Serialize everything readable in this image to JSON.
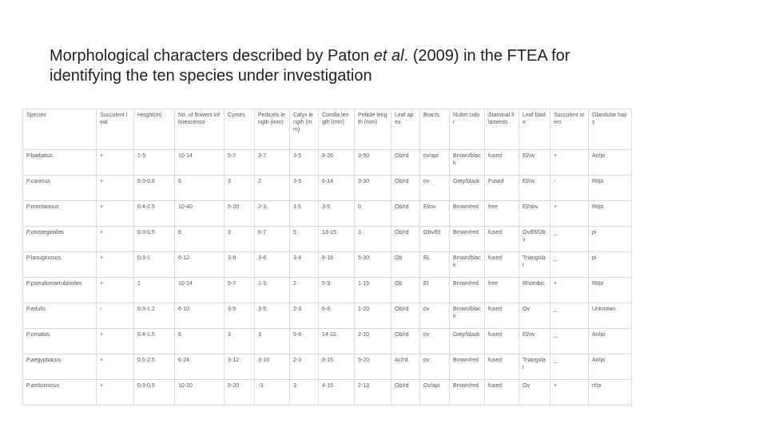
{
  "header": {
    "title_before": "Morphological characters described by Paton ",
    "title_italic": "et al",
    "title_after": ". (2009) in the FTEA for identifying the ten species under investigation"
  },
  "table": {
    "header": [
      "Species",
      "Succulent leaf",
      "Height(m)",
      "No. of flowers inflorescence",
      "Cymes",
      "Pedicels length (mm)",
      "Calyx length (mm)",
      "Corolla length (mm)",
      "Petiole length (mm)",
      "Leaf apex",
      "Bracts",
      "Nutlet color",
      "Staminal filaments",
      "Leaf blade",
      "Succulent stem",
      "Glandular hairs"
    ],
    "rows": [
      [
        "P.barbatus",
        "+",
        "1-5",
        "10-14",
        "5-7",
        "3-7",
        "3-5",
        "8-26",
        "3-50",
        "Ob/rd",
        "ov/api",
        "Brown/black",
        "fused",
        "El/ov",
        "+",
        "An/pi"
      ],
      [
        "P.caninus",
        "+",
        "0.3-0.6",
        "6",
        "3",
        "2",
        "3-5",
        "6-14",
        "3-30",
        "Ob/rd",
        "ov",
        "Grey/black",
        "Fused",
        "El/ov",
        "-",
        "Rt/pi"
      ],
      [
        "P.montanous",
        "+",
        "0.4-2.5",
        "10-40",
        "5-20",
        "2-3",
        "3.5",
        "3-5",
        "0",
        "Ob/rd",
        "El/ov",
        "Brown/red",
        "free",
        "El/obv",
        "+",
        "Rt/pi"
      ],
      [
        "P.otostegioides",
        "+",
        "0.3-0.5",
        "6",
        "3",
        "6-7",
        "5",
        "13-15",
        "3",
        "Ob/rd",
        "Obv/El",
        "Brown/red",
        "fused",
        "Ov/El/Obv",
        "_",
        "pi"
      ],
      [
        "P.lanuginosus",
        "+",
        "0.3-1",
        "6-12",
        "3-6",
        "3-6",
        "3-4",
        "8-16",
        "5-30",
        "Ob",
        "EL",
        "Brown/black",
        "fused",
        "Triangular",
        "_",
        "pi"
      ],
      [
        "P.pseudomarrubioides",
        "+",
        "1",
        "10-14",
        "5-7",
        "1-3",
        "2",
        "5-9",
        "1-15",
        "Ob",
        "El",
        "Brown/red",
        "free",
        "Rhombic",
        "+",
        "Rt/pi"
      ],
      [
        "P.edulis",
        "-",
        "0.3-1.2",
        "6-10",
        "3-5",
        "3-5",
        "2-3",
        "6-8",
        "1-20",
        "Ob/rd",
        "ov",
        "Brown/black",
        "fused",
        "Ov",
        "_",
        "Unknown"
      ],
      [
        "P.ornatus",
        "+",
        "0.4-1.5",
        "6",
        "3",
        "3",
        "5-6",
        "14-22",
        "2-10",
        "Ob/rd",
        "ov",
        "Grey/black",
        "fused",
        "El/ov",
        "_",
        "An/pi"
      ],
      [
        "P.aegyptiacus",
        "+",
        "0.5-2.5",
        "6-24",
        "3-12",
        "3-10",
        "2-3",
        "8-15",
        "5-20",
        "Ac/rd",
        "ov",
        "Brown/red",
        "fused",
        "Triangular",
        "_",
        "An/pi"
      ],
      [
        "P.amboinicus",
        "+",
        "0.3-0.5",
        "10-20",
        "5-20",
        "-3",
        "3",
        "4-15",
        "2-13",
        "Ob/rd",
        "Ov/api",
        "Brown/red",
        "fused",
        "Ov",
        "+",
        "rt/pi"
      ]
    ]
  }
}
